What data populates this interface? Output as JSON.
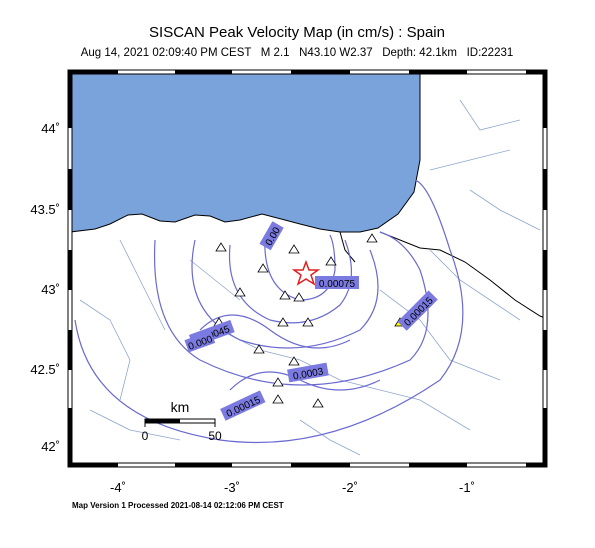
{
  "map": {
    "title": "SISCAN Peak Velocity Map (in cm/s) : Spain",
    "subtitle": "Aug 14, 2021 02:09:40 PM CEST   M 2.1   N43.10 W2.37   Depth: 42.1km   ID:22231",
    "lat_labels": [
      "44˚",
      "43.5˚",
      "43˚",
      "42.5˚",
      "42˚"
    ],
    "lon_labels": [
      "-4˚",
      "-3˚",
      "-2˚",
      "-1˚"
    ],
    "contour_labels": [
      "0.00",
      "0.00075",
      "0.00015",
      "0.00045",
      "0.000",
      "0.0003",
      "0.00015"
    ],
    "scale": {
      "unit": "km",
      "ticks": [
        "0",
        "50"
      ]
    },
    "footer": "Map Version 1 Processed 2021-08-14 02:12:06 PM CEST"
  }
}
